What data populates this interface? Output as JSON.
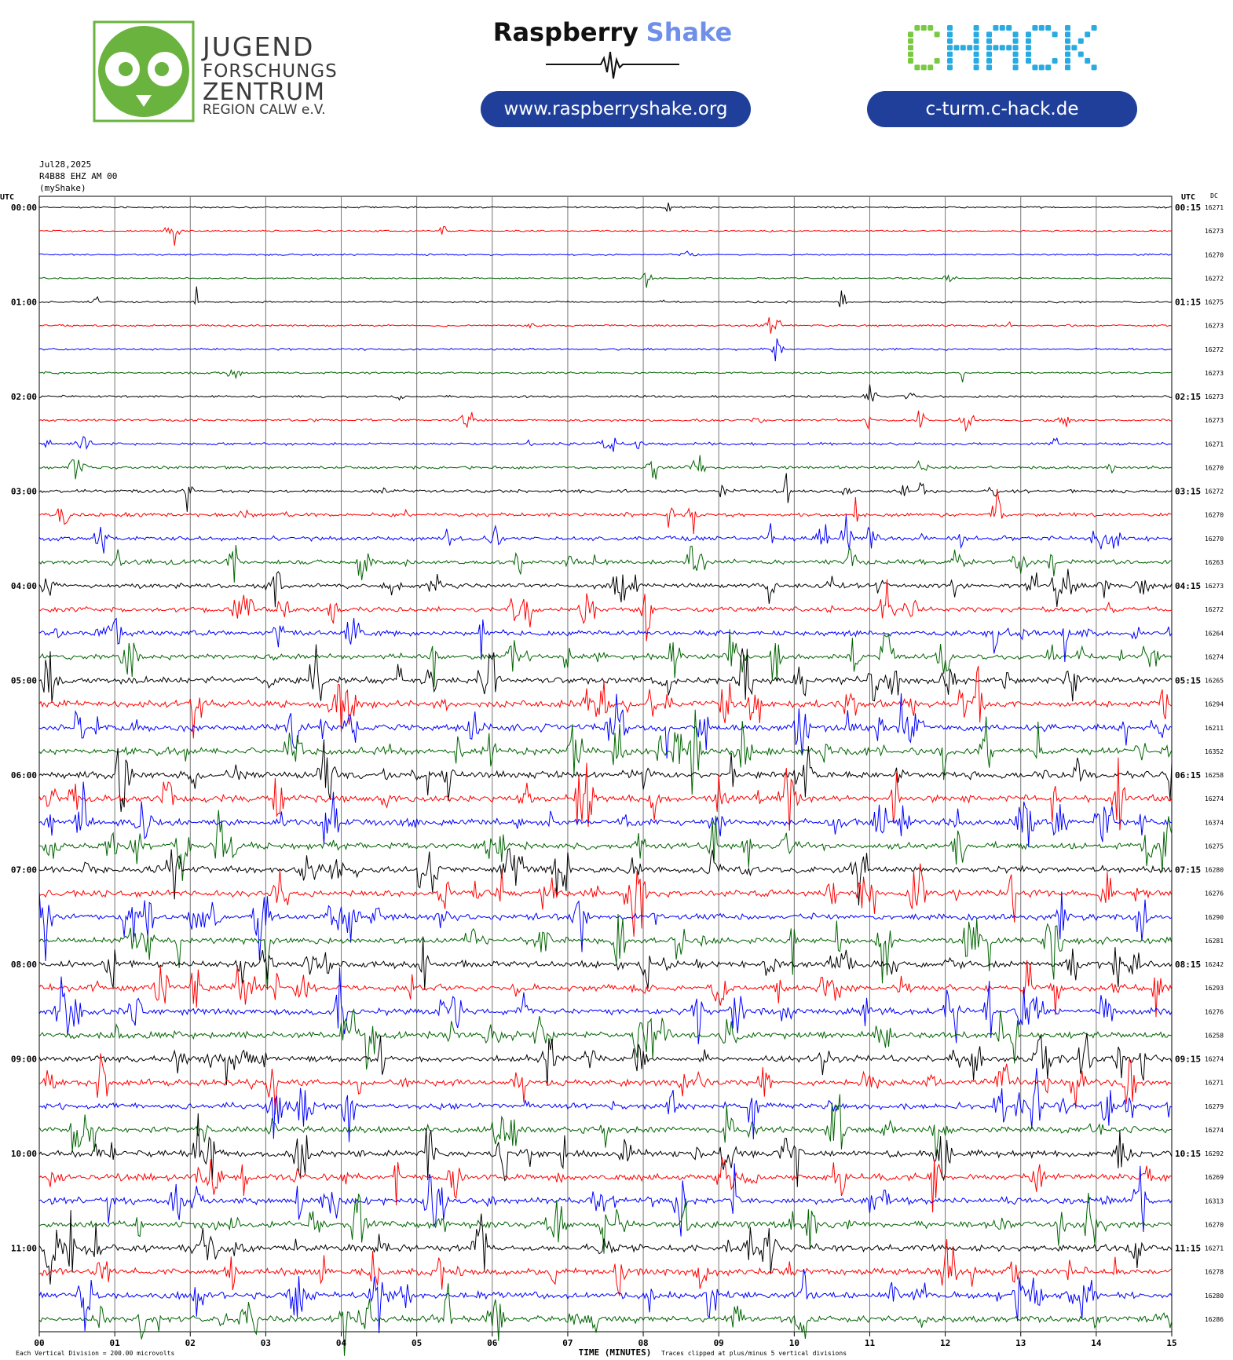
{
  "logos": {
    "jfz": {
      "line1": "JUGEND",
      "line2": "FORSCHUNGS",
      "line3": "ZENTRUM",
      "line4": "REGION CALW e.V.",
      "color": "#6ab33e"
    },
    "rs": {
      "word1": "Raspberry",
      "word2": "Shake",
      "url": "www.raspberryshake.org"
    },
    "chack": {
      "text": "CHACK",
      "green": "#7ac943",
      "cyan": "#29abe2",
      "url": "c-turm.c-hack.de"
    }
  },
  "header": {
    "date": "Jul28,2025",
    "station": "R4B88 EHZ AM 00",
    "source": "(myShake)"
  },
  "chart_data": {
    "type": "line",
    "title": "",
    "xlabel": "TIME (MINUTES)",
    "xlim": [
      0,
      15
    ],
    "x_ticks": [
      "00",
      "01",
      "02",
      "03",
      "04",
      "05",
      "06",
      "07",
      "08",
      "09",
      "10",
      "11",
      "12",
      "13",
      "14",
      "15"
    ],
    "left_axis_label": "UTC",
    "right_axis_label": "UTC",
    "dc_label": "DC",
    "left_hour_labels": [
      "00:00",
      "01:00",
      "02:00",
      "03:00",
      "04:00",
      "05:00",
      "06:00",
      "07:00",
      "08:00",
      "09:00",
      "10:00",
      "11:00"
    ],
    "right_hour_labels": [
      "00:15",
      "01:15",
      "02:15",
      "03:15",
      "04:15",
      "05:15",
      "06:15",
      "07:15",
      "08:15",
      "09:15",
      "10:15",
      "11:15"
    ],
    "trace_colors": [
      "#000000",
      "#ff0000",
      "#0000ff",
      "#006400"
    ],
    "dc_offsets": [
      16271,
      16273,
      16270,
      16272,
      16275,
      16273,
      16272,
      16273,
      16273,
      16273,
      16271,
      16270,
      16272,
      16270,
      16270,
      16263,
      16273,
      16272,
      16264,
      16274,
      16265,
      16294,
      16211,
      16352,
      16258,
      16274,
      16374,
      16275,
      16280,
      16276,
      16290,
      16281,
      16242,
      16293,
      16276,
      16258,
      16274,
      16271,
      16279,
      16274,
      16292,
      16269,
      16313,
      16270,
      16271,
      16278,
      16280,
      16286
    ],
    "amplitude_level": [
      0.05,
      0.05,
      0.04,
      0.04,
      0.08,
      0.1,
      0.1,
      0.12,
      0.14,
      0.2,
      0.2,
      0.25,
      0.3,
      0.4,
      0.5,
      0.55,
      0.6,
      0.6,
      0.65,
      0.7,
      0.8,
      0.9,
      0.9,
      0.9,
      0.9,
      0.9,
      0.9,
      0.85,
      0.85,
      0.85,
      0.8,
      0.8,
      0.85,
      0.85,
      0.85,
      0.8,
      0.85,
      0.8,
      0.8,
      0.8,
      0.9,
      0.9,
      0.85,
      0.85,
      0.9,
      0.9,
      0.85,
      0.85
    ],
    "footer_left": "Each Vertical Division =  200.00 microvolts",
    "footer_right": "Traces clipped at plus/minus 5 vertical divisions"
  }
}
